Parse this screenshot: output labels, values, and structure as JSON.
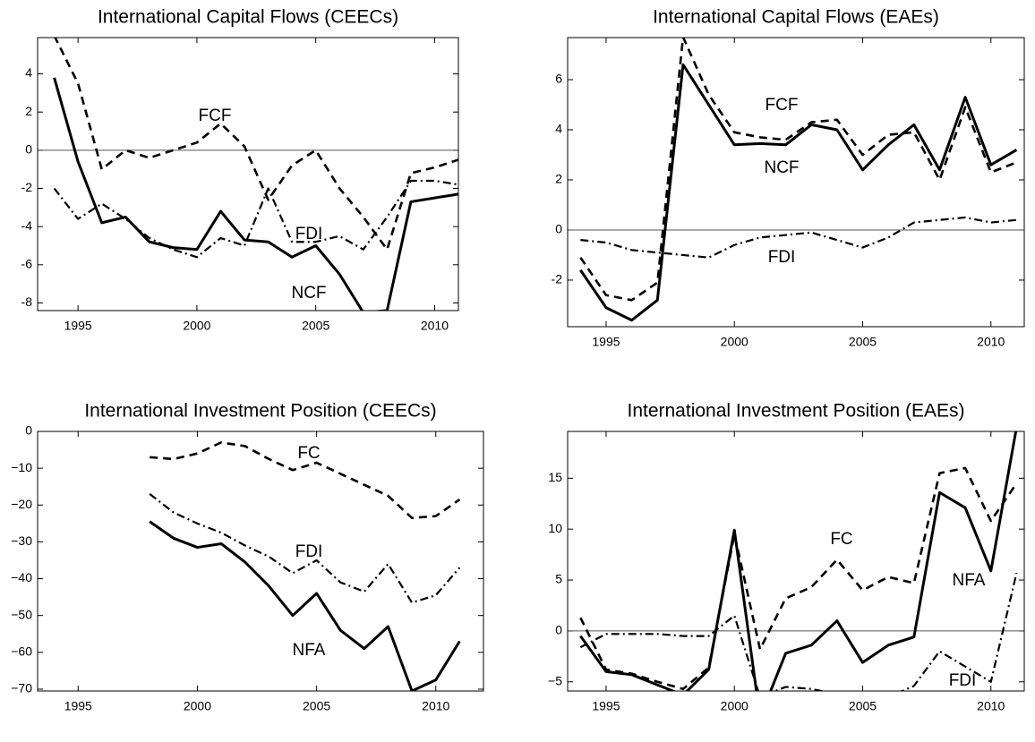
{
  "chart_data": [
    {
      "type": "line",
      "title": "International Capital Flows (CEECs)",
      "x": [
        1994,
        1995,
        1996,
        1997,
        1998,
        1999,
        2000,
        2001,
        2002,
        2003,
        2004,
        2005,
        2006,
        2007,
        2008,
        2009,
        2010,
        2011
      ],
      "series": [
        {
          "name": "NCF",
          "color": "#000000",
          "style": "solid",
          "values": [
            3.8,
            -0.6,
            -3.8,
            -3.5,
            -4.8,
            -5.1,
            -5.2,
            -3.2,
            -4.7,
            -4.8,
            -5.6,
            -5.0,
            -6.5,
            -8.5,
            -8.4,
            -2.7,
            -2.5,
            -2.3
          ]
        },
        {
          "name": "FCF",
          "color": "#000000",
          "style": "dashed",
          "values": [
            6.0,
            3.5,
            -1.0,
            0.0,
            -0.4,
            0.0,
            0.4,
            1.4,
            0.2,
            -2.6,
            -0.8,
            0.0,
            -2.0,
            -3.5,
            -5.2,
            -1.2,
            -0.9,
            -0.5
          ]
        },
        {
          "name": "FDI",
          "color": "#000000",
          "style": "dashdot",
          "values": [
            -2.0,
            -3.6,
            -2.8,
            -3.6,
            -4.6,
            -5.2,
            -5.6,
            -4.6,
            -5.0,
            -2.0,
            -4.8,
            -4.8,
            -4.5,
            -5.2,
            -3.5,
            -1.6,
            -1.6,
            -1.8
          ]
        }
      ],
      "xlim": [
        1993.3,
        2011
      ],
      "ylim": [
        -8.4,
        5.9
      ],
      "xticks": [
        1995,
        2000,
        2005,
        2010
      ],
      "yticks": [
        -8,
        -6,
        -4,
        -2,
        0,
        2,
        4
      ],
      "hline": 0
    },
    {
      "type": "line",
      "title": "International Capital Flows (EAEs)",
      "x": [
        1994,
        1995,
        1996,
        1997,
        1998,
        1999,
        2000,
        2001,
        2002,
        2003,
        2004,
        2005,
        2006,
        2007,
        2008,
        2009,
        2010,
        2011
      ],
      "series": [
        {
          "name": "NCF",
          "color": "#000000",
          "style": "solid",
          "values": [
            -1.6,
            -3.1,
            -3.6,
            -2.8,
            6.6,
            5.0,
            3.4,
            3.45,
            3.4,
            4.2,
            4.0,
            2.4,
            3.4,
            4.2,
            2.4,
            5.3,
            2.6,
            3.2
          ]
        },
        {
          "name": "FCF",
          "color": "#000000",
          "style": "dashed",
          "values": [
            -1.1,
            -2.6,
            -2.8,
            -2.1,
            7.7,
            5.4,
            3.9,
            3.7,
            3.6,
            4.3,
            4.4,
            3.0,
            3.8,
            3.9,
            2.0,
            4.9,
            2.3,
            2.7
          ]
        },
        {
          "name": "FDI",
          "color": "#000000",
          "style": "dashdot",
          "values": [
            -0.4,
            -0.5,
            -0.8,
            -0.9,
            -1.0,
            -1.1,
            -0.6,
            -0.3,
            -0.2,
            -0.1,
            -0.4,
            -0.7,
            -0.3,
            0.3,
            0.4,
            0.5,
            0.3,
            0.4
          ]
        }
      ],
      "xlim": [
        1993.5,
        2011.3
      ],
      "ylim": [
        -3.86,
        7.68
      ],
      "xticks": [
        1995,
        2000,
        2005,
        2010
      ],
      "yticks": [
        -2,
        0,
        2,
        4,
        6
      ],
      "hline": 0
    },
    {
      "type": "line",
      "title": "International Investment Position (CEECs)",
      "x": [
        1998,
        1999,
        2000,
        2001,
        2002,
        2003,
        2004,
        2005,
        2006,
        2007,
        2008,
        2009,
        2010,
        2011
      ],
      "series": [
        {
          "name": "FC",
          "color": "#000000",
          "style": "dashed",
          "values": [
            -7,
            -7.5,
            -6,
            -3,
            -4,
            -7.5,
            -10.5,
            -8.5,
            -11.5,
            -14.5,
            -17.5,
            -23.5,
            -23,
            -18.5
          ]
        },
        {
          "name": "FDI",
          "color": "#000000",
          "style": "dashdot",
          "values": [
            -17,
            -22,
            -25,
            -27.5,
            -31,
            -34,
            -38.5,
            -35,
            -41,
            -43.5,
            -36,
            -46.5,
            -44.5,
            -37
          ]
        },
        {
          "name": "NFA",
          "color": "#000000",
          "style": "solid",
          "values": [
            -24.5,
            -29,
            -31.5,
            -30.5,
            -35.5,
            -42,
            -50,
            -44,
            -54,
            -59,
            -53,
            -70.5,
            -67.5,
            -57
          ]
        }
      ],
      "xlim": [
        1993.3,
        2012
      ],
      "ylim": [
        -70.5,
        0
      ],
      "xticks": [
        1995,
        2000,
        2005,
        2010
      ],
      "yticks": [
        {
          "value": -70,
          "label": "−70"
        },
        {
          "value": -60,
          "label": "−60"
        },
        {
          "value": -50,
          "label": "−50"
        },
        {
          "value": -40,
          "label": "−40"
        },
        {
          "value": -30,
          "label": "−30"
        },
        {
          "value": -20,
          "label": "−20"
        },
        {
          "value": -10,
          "label": "−10"
        },
        0
      ]
    },
    {
      "type": "line",
      "title": "International Investment Position (EAEs)",
      "x": [
        1994,
        1995,
        1996,
        1997,
        1998,
        1999,
        2000,
        2001,
        2002,
        2003,
        2004,
        2005,
        2006,
        2007,
        2008,
        2009,
        2010,
        2011
      ],
      "series": [
        {
          "name": "NFA",
          "color": "#000000",
          "style": "solid",
          "values": [
            -0.5,
            -4.0,
            -4.3,
            -5.3,
            -6.3,
            -3.8,
            9.9,
            -8.5,
            -2.2,
            -1.4,
            1.0,
            -3.1,
            -1.4,
            -0.6,
            13.6,
            12.1,
            5.9,
            20
          ]
        },
        {
          "name": "FC",
          "color": "#000000",
          "style": "dashed",
          "values": [
            1.3,
            -3.8,
            -4.2,
            -5.0,
            -5.7,
            -3.6,
            9.5,
            -1.8,
            3.2,
            4.3,
            7.0,
            4.0,
            5.3,
            4.7,
            15.5,
            16.0,
            10.8,
            14.5
          ]
        },
        {
          "name": "FDI",
          "color": "#000000",
          "style": "dashdot",
          "values": [
            -1.6,
            -0.3,
            -0.3,
            -0.3,
            -0.5,
            -0.5,
            1.5,
            -6.5,
            -5.5,
            -5.7,
            -6.2,
            -7.0,
            -6.5,
            -5.4,
            -2.0,
            -3.5,
            -5.0,
            5.7
          ]
        }
      ],
      "xlim": [
        1993.5,
        2011.3
      ],
      "ylim": [
        -5.9,
        19.6
      ],
      "xticks": [
        1995,
        2000,
        2005,
        2010
      ],
      "yticks": [
        {
          "value": -5,
          "label": "−5"
        },
        0,
        5,
        10,
        15
      ],
      "hline": 0
    }
  ]
}
